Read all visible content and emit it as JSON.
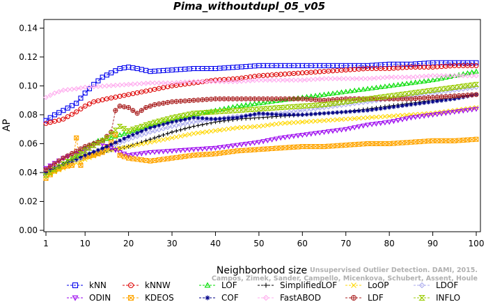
{
  "chart_data": {
    "type": "line",
    "title": "Pima_withoutdupl_05_v05",
    "xlabel": "Neighborhood size",
    "ylabel": "AP",
    "xlim": [
      1,
      100
    ],
    "ylim": [
      0.0,
      0.145
    ],
    "x_ticks": [
      1,
      10,
      20,
      30,
      40,
      50,
      60,
      70,
      80,
      90,
      100
    ],
    "y_ticks": [
      0.0,
      0.02,
      0.04,
      0.06,
      0.08,
      0.1,
      0.12,
      0.14
    ],
    "x_tick_labels": [
      "1",
      "10",
      "20",
      "30",
      "40",
      "50",
      "60",
      "70",
      "80",
      "90",
      "100"
    ],
    "y_tick_labels": [
      "0.00",
      "0.02",
      "0.04",
      "0.06",
      "0.08",
      "0.10",
      "0.12",
      "0.14"
    ],
    "grid": false,
    "legend_position": "bottom",
    "watermark": [
      "Campos, Zimek, Sander, Campello, Micenkova, Schubert, Assent, Houle",
      "Unsupervised Outlier Detection. DAMI, 2015."
    ],
    "series": [
      {
        "name": "kNN",
        "color": "#0000ee",
        "marker": "square",
        "points": [
          [
            1,
            0.076
          ],
          [
            3,
            0.08
          ],
          [
            5,
            0.083
          ],
          [
            8,
            0.088
          ],
          [
            10,
            0.095
          ],
          [
            12,
            0.101
          ],
          [
            14,
            0.106
          ],
          [
            16,
            0.109
          ],
          [
            18,
            0.112
          ],
          [
            20,
            0.113
          ],
          [
            22,
            0.112
          ],
          [
            25,
            0.11
          ],
          [
            30,
            0.111
          ],
          [
            35,
            0.112
          ],
          [
            40,
            0.112
          ],
          [
            45,
            0.113
          ],
          [
            50,
            0.114
          ],
          [
            55,
            0.114
          ],
          [
            60,
            0.114
          ],
          [
            65,
            0.114
          ],
          [
            70,
            0.114
          ],
          [
            75,
            0.114
          ],
          [
            80,
            0.115
          ],
          [
            85,
            0.115
          ],
          [
            90,
            0.116
          ],
          [
            95,
            0.116
          ],
          [
            100,
            0.116
          ]
        ]
      },
      {
        "name": "kNNW",
        "color": "#dd0000",
        "marker": "circle",
        "points": [
          [
            1,
            0.074
          ],
          [
            5,
            0.077
          ],
          [
            8,
            0.082
          ],
          [
            10,
            0.086
          ],
          [
            12,
            0.089
          ],
          [
            15,
            0.091
          ],
          [
            20,
            0.094
          ],
          [
            25,
            0.097
          ],
          [
            30,
            0.1
          ],
          [
            35,
            0.102
          ],
          [
            40,
            0.104
          ],
          [
            45,
            0.105
          ],
          [
            50,
            0.107
          ],
          [
            55,
            0.108
          ],
          [
            60,
            0.109
          ],
          [
            65,
            0.11
          ],
          [
            70,
            0.111
          ],
          [
            75,
            0.112
          ],
          [
            80,
            0.112
          ],
          [
            85,
            0.113
          ],
          [
            90,
            0.113
          ],
          [
            95,
            0.114
          ],
          [
            100,
            0.114
          ]
        ]
      },
      {
        "name": "LOF",
        "color": "#00dd00",
        "marker": "triangle-up",
        "points": [
          [
            1,
            0.04
          ],
          [
            5,
            0.046
          ],
          [
            8,
            0.052
          ],
          [
            10,
            0.057
          ],
          [
            13,
            0.062
          ],
          [
            16,
            0.064
          ],
          [
            20,
            0.068
          ],
          [
            25,
            0.073
          ],
          [
            30,
            0.077
          ],
          [
            35,
            0.08
          ],
          [
            40,
            0.083
          ],
          [
            45,
            0.086
          ],
          [
            50,
            0.088
          ],
          [
            55,
            0.09
          ],
          [
            60,
            0.092
          ],
          [
            65,
            0.094
          ],
          [
            70,
            0.096
          ],
          [
            75,
            0.098
          ],
          [
            80,
            0.1
          ],
          [
            85,
            0.102
          ],
          [
            90,
            0.104
          ],
          [
            95,
            0.107
          ],
          [
            100,
            0.11
          ]
        ]
      },
      {
        "name": "SimplifiedLOF",
        "color": "#000000",
        "marker": "plus",
        "points": [
          [
            1,
            0.042
          ],
          [
            5,
            0.045
          ],
          [
            10,
            0.05
          ],
          [
            15,
            0.055
          ],
          [
            20,
            0.058
          ],
          [
            25,
            0.063
          ],
          [
            30,
            0.068
          ],
          [
            35,
            0.072
          ],
          [
            40,
            0.075
          ],
          [
            45,
            0.077
          ],
          [
            50,
            0.078
          ],
          [
            55,
            0.079
          ],
          [
            60,
            0.08
          ],
          [
            65,
            0.081
          ],
          [
            70,
            0.082
          ],
          [
            75,
            0.084
          ],
          [
            80,
            0.086
          ],
          [
            85,
            0.088
          ],
          [
            90,
            0.09
          ],
          [
            95,
            0.092
          ],
          [
            100,
            0.094
          ]
        ]
      },
      {
        "name": "LoOP",
        "color": "#ffd700",
        "marker": "x",
        "points": [
          [
            1,
            0.038
          ],
          [
            5,
            0.043
          ],
          [
            10,
            0.049
          ],
          [
            15,
            0.055
          ],
          [
            20,
            0.058
          ],
          [
            25,
            0.061
          ],
          [
            30,
            0.064
          ],
          [
            35,
            0.067
          ],
          [
            40,
            0.069
          ],
          [
            45,
            0.071
          ],
          [
            50,
            0.072
          ],
          [
            55,
            0.074
          ],
          [
            60,
            0.075
          ],
          [
            65,
            0.076
          ],
          [
            70,
            0.077
          ],
          [
            75,
            0.078
          ],
          [
            80,
            0.079
          ],
          [
            85,
            0.08
          ],
          [
            90,
            0.081
          ],
          [
            95,
            0.083
          ],
          [
            100,
            0.085
          ]
        ]
      },
      {
        "name": "LDOF",
        "color": "#aaaaee",
        "marker": "diamond",
        "points": [
          [
            1,
            0.04
          ],
          [
            5,
            0.045
          ],
          [
            10,
            0.051
          ],
          [
            15,
            0.057
          ],
          [
            20,
            0.063
          ],
          [
            25,
            0.068
          ],
          [
            30,
            0.072
          ],
          [
            35,
            0.075
          ],
          [
            40,
            0.077
          ],
          [
            45,
            0.079
          ],
          [
            50,
            0.08
          ],
          [
            55,
            0.081
          ],
          [
            60,
            0.083
          ],
          [
            65,
            0.085
          ],
          [
            70,
            0.087
          ],
          [
            75,
            0.089
          ],
          [
            80,
            0.091
          ],
          [
            85,
            0.093
          ],
          [
            90,
            0.095
          ],
          [
            95,
            0.097
          ],
          [
            100,
            0.099
          ]
        ]
      },
      {
        "name": "ODIN",
        "color": "#9900ee",
        "marker": "triangle-down",
        "points": [
          [
            1,
            0.043
          ],
          [
            5,
            0.05
          ],
          [
            10,
            0.055
          ],
          [
            13,
            0.061
          ],
          [
            16,
            0.057
          ],
          [
            18,
            0.054
          ],
          [
            20,
            0.052
          ],
          [
            25,
            0.054
          ],
          [
            30,
            0.055
          ],
          [
            35,
            0.056
          ],
          [
            40,
            0.057
          ],
          [
            45,
            0.059
          ],
          [
            50,
            0.061
          ],
          [
            55,
            0.064
          ],
          [
            60,
            0.066
          ],
          [
            65,
            0.068
          ],
          [
            70,
            0.07
          ],
          [
            75,
            0.073
          ],
          [
            80,
            0.075
          ],
          [
            85,
            0.078
          ],
          [
            90,
            0.08
          ],
          [
            95,
            0.082
          ],
          [
            100,
            0.084
          ]
        ]
      },
      {
        "name": "KDEOS",
        "color": "#ffa500",
        "marker": "square-x",
        "points": [
          [
            1,
            0.036
          ],
          [
            3,
            0.041
          ],
          [
            5,
            0.044
          ],
          [
            7,
            0.045
          ],
          [
            8,
            0.064
          ],
          [
            9,
            0.045
          ],
          [
            10,
            0.051
          ],
          [
            12,
            0.052
          ],
          [
            14,
            0.054
          ],
          [
            16,
            0.061
          ],
          [
            17,
            0.066
          ],
          [
            18,
            0.052
          ],
          [
            20,
            0.05
          ],
          [
            25,
            0.048
          ],
          [
            30,
            0.05
          ],
          [
            35,
            0.052
          ],
          [
            40,
            0.053
          ],
          [
            45,
            0.055
          ],
          [
            50,
            0.056
          ],
          [
            55,
            0.057
          ],
          [
            60,
            0.058
          ],
          [
            65,
            0.058
          ],
          [
            70,
            0.059
          ],
          [
            75,
            0.06
          ],
          [
            80,
            0.06
          ],
          [
            85,
            0.061
          ],
          [
            90,
            0.062
          ],
          [
            95,
            0.062
          ],
          [
            100,
            0.063
          ]
        ]
      },
      {
        "name": "COF",
        "color": "#000088",
        "marker": "star",
        "points": [
          [
            1,
            0.04
          ],
          [
            5,
            0.046
          ],
          [
            10,
            0.052
          ],
          [
            15,
            0.058
          ],
          [
            20,
            0.065
          ],
          [
            25,
            0.071
          ],
          [
            30,
            0.075
          ],
          [
            35,
            0.078
          ],
          [
            40,
            0.077
          ],
          [
            45,
            0.078
          ],
          [
            50,
            0.081
          ],
          [
            55,
            0.08
          ],
          [
            60,
            0.08
          ],
          [
            65,
            0.081
          ],
          [
            70,
            0.082
          ],
          [
            75,
            0.083
          ],
          [
            80,
            0.085
          ],
          [
            85,
            0.087
          ],
          [
            90,
            0.089
          ],
          [
            95,
            0.091
          ],
          [
            100,
            0.094
          ]
        ]
      },
      {
        "name": "FastABOD",
        "color": "#ffaaee",
        "marker": "diamond",
        "points": [
          [
            1,
            0.092
          ],
          [
            3,
            0.095
          ],
          [
            5,
            0.097
          ],
          [
            8,
            0.098
          ],
          [
            10,
            0.099
          ],
          [
            15,
            0.1
          ],
          [
            20,
            0.101
          ],
          [
            25,
            0.102
          ],
          [
            30,
            0.102
          ],
          [
            35,
            0.103
          ],
          [
            40,
            0.103
          ],
          [
            45,
            0.103
          ],
          [
            50,
            0.104
          ],
          [
            55,
            0.104
          ],
          [
            60,
            0.104
          ],
          [
            65,
            0.105
          ],
          [
            70,
            0.105
          ],
          [
            75,
            0.105
          ],
          [
            80,
            0.106
          ],
          [
            85,
            0.106
          ],
          [
            90,
            0.107
          ],
          [
            95,
            0.107
          ],
          [
            100,
            0.107
          ]
        ]
      },
      {
        "name": "LDF",
        "color": "#aa2222",
        "marker": "circle-plus",
        "points": [
          [
            1,
            0.042
          ],
          [
            5,
            0.05
          ],
          [
            10,
            0.058
          ],
          [
            14,
            0.062
          ],
          [
            16,
            0.068
          ],
          [
            17,
            0.083
          ],
          [
            18,
            0.086
          ],
          [
            20,
            0.085
          ],
          [
            22,
            0.081
          ],
          [
            24,
            0.085
          ],
          [
            26,
            0.087
          ],
          [
            30,
            0.089
          ],
          [
            35,
            0.09
          ],
          [
            40,
            0.091
          ],
          [
            45,
            0.091
          ],
          [
            50,
            0.091
          ],
          [
            55,
            0.091
          ],
          [
            60,
            0.091
          ],
          [
            65,
            0.09
          ],
          [
            70,
            0.091
          ],
          [
            75,
            0.091
          ],
          [
            80,
            0.091
          ],
          [
            85,
            0.091
          ],
          [
            90,
            0.092
          ],
          [
            95,
            0.093
          ],
          [
            100,
            0.094
          ]
        ]
      },
      {
        "name": "INFLO",
        "color": "#99cc00",
        "marker": "hourglass",
        "points": [
          [
            1,
            0.038
          ],
          [
            5,
            0.046
          ],
          [
            10,
            0.055
          ],
          [
            15,
            0.064
          ],
          [
            18,
            0.072
          ],
          [
            20,
            0.069
          ],
          [
            25,
            0.074
          ],
          [
            30,
            0.078
          ],
          [
            35,
            0.081
          ],
          [
            40,
            0.082
          ],
          [
            45,
            0.083
          ],
          [
            50,
            0.084
          ],
          [
            55,
            0.085
          ],
          [
            60,
            0.086
          ],
          [
            65,
            0.087
          ],
          [
            70,
            0.089
          ],
          [
            75,
            0.091
          ],
          [
            80,
            0.093
          ],
          [
            85,
            0.095
          ],
          [
            90,
            0.097
          ],
          [
            95,
            0.099
          ],
          [
            100,
            0.101
          ]
        ]
      }
    ]
  }
}
